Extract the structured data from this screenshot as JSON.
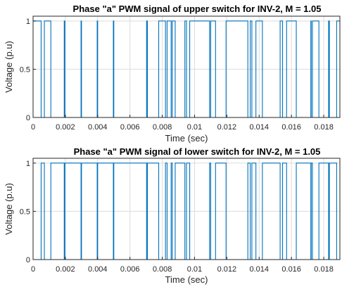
{
  "chart_data": [
    {
      "type": "line",
      "title": "Phase \"a\" PWM signal of upper switch for INV-2, M =  1.05",
      "xlabel": "Time (sec)",
      "ylabel": "Voltage (p.u)",
      "xlim": [
        0,
        0.019
      ],
      "ylim": [
        0,
        1.05
      ],
      "xticks": [
        0,
        0.002,
        0.004,
        0.006,
        0.008,
        0.01,
        0.012,
        0.014,
        0.016,
        0.018
      ],
      "xtick_labels": [
        "0",
        "0.002",
        "0.004",
        "0.006",
        "0.008",
        "0.01",
        "0.012",
        "0.014",
        "0.016",
        "0.018"
      ],
      "yticks": [
        0,
        0.5,
        1
      ],
      "ytick_labels": [
        "0",
        "0.5",
        "1"
      ],
      "grid": true,
      "line_color": "#0072bd",
      "series": [
        {
          "x": [
            0,
            0.0005,
            0.0005,
            0.0007,
            0.0007,
            0.0011,
            0.0011,
            0.00193,
            0.00193,
            0.00197,
            0.00197,
            0.00297,
            0.00297,
            0.003,
            0.003,
            0.00397,
            0.00397,
            0.004,
            0.004,
            0.00497,
            0.00497,
            0.005,
            0.005,
            0.00703,
            0.00703,
            0.00708,
            0.00708,
            0.00778,
            0.00778,
            0.0082,
            0.0082,
            0.0083,
            0.0083,
            0.00855,
            0.00855,
            0.00862,
            0.00862,
            0.0088,
            0.0088,
            0.0094,
            0.0094,
            0.0095,
            0.0095,
            0.0097,
            0.0097,
            0.01093,
            0.01093,
            0.011,
            0.011,
            0.0113,
            0.0113,
            0.01195,
            0.01195,
            0.0133,
            0.0133,
            0.01345,
            0.01345,
            0.01355,
            0.01355,
            0.0138,
            0.0138,
            0.0142,
            0.0142,
            0.0153,
            0.0153,
            0.01545,
            0.01545,
            0.0157,
            0.0157,
            0.0163,
            0.0163,
            0.0172,
            0.0172,
            0.01722,
            0.01722,
            0.0173,
            0.0173,
            0.0177,
            0.0177,
            0.0183,
            0.0183,
            0.01835,
            0.01835,
            0.0188,
            0.0188,
            0.019
          ],
          "y": [
            1,
            1,
            0,
            0,
            1,
            1,
            0,
            0,
            1,
            1,
            0,
            0,
            1,
            1,
            0,
            0,
            1,
            1,
            0,
            0,
            1,
            1,
            0,
            0,
            1,
            1,
            0,
            0,
            1,
            1,
            0,
            0,
            1,
            1,
            0,
            0,
            1,
            1,
            0,
            0,
            1,
            1,
            0,
            0,
            1,
            1,
            0,
            0,
            1,
            1,
            0,
            0,
            1,
            1,
            0,
            0,
            1,
            1,
            0,
            0,
            1,
            1,
            0,
            0,
            1,
            1,
            0,
            0,
            1,
            1,
            0,
            0,
            1,
            1,
            0,
            0,
            1,
            1,
            0,
            0,
            1,
            1,
            0,
            0,
            1,
            1
          ]
        }
      ]
    },
    {
      "type": "line",
      "title": "Phase \"a\" PWM signal of lower switch for INV-2, M =  1.05",
      "xlabel": "Time (sec)",
      "ylabel": "Voltage (p.u)",
      "xlim": [
        0,
        0.019
      ],
      "ylim": [
        0,
        1.05
      ],
      "xticks": [
        0,
        0.002,
        0.004,
        0.006,
        0.008,
        0.01,
        0.012,
        0.014,
        0.016,
        0.018
      ],
      "xtick_labels": [
        "0",
        "0.002",
        "0.004",
        "0.006",
        "0.008",
        "0.01",
        "0.012",
        "0.014",
        "0.016",
        "0.018"
      ],
      "yticks": [
        0,
        0.5,
        1
      ],
      "ytick_labels": [
        "0",
        "0.5",
        "1"
      ],
      "grid": true,
      "line_color": "#0072bd",
      "series": [
        {
          "x": [
            0,
            0.0005,
            0.0005,
            0.0007,
            0.0007,
            0.0011,
            0.0011,
            0.00193,
            0.00193,
            0.00197,
            0.00197,
            0.00297,
            0.00297,
            0.003,
            0.003,
            0.00397,
            0.00397,
            0.004,
            0.004,
            0.00497,
            0.00497,
            0.005,
            0.005,
            0.00703,
            0.00703,
            0.00708,
            0.00708,
            0.00778,
            0.00778,
            0.0082,
            0.0082,
            0.0083,
            0.0083,
            0.00855,
            0.00855,
            0.00862,
            0.00862,
            0.0088,
            0.0088,
            0.0094,
            0.0094,
            0.0095,
            0.0095,
            0.0097,
            0.0097,
            0.01093,
            0.01093,
            0.011,
            0.011,
            0.0113,
            0.0113,
            0.01195,
            0.01195,
            0.0133,
            0.0133,
            0.01345,
            0.01345,
            0.01355,
            0.01355,
            0.0138,
            0.0138,
            0.0142,
            0.0142,
            0.0153,
            0.0153,
            0.01545,
            0.01545,
            0.0157,
            0.0157,
            0.0163,
            0.0163,
            0.0172,
            0.0172,
            0.01722,
            0.01722,
            0.0173,
            0.0173,
            0.0177,
            0.0177,
            0.0183,
            0.0183,
            0.01835,
            0.01835,
            0.0188,
            0.0188,
            0.019
          ],
          "y": [
            0,
            0,
            1,
            1,
            0,
            0,
            1,
            1,
            0,
            0,
            1,
            1,
            0,
            0,
            1,
            1,
            0,
            0,
            1,
            1,
            0,
            0,
            1,
            1,
            0,
            0,
            1,
            1,
            0,
            0,
            1,
            1,
            0,
            0,
            1,
            1,
            0,
            0,
            1,
            1,
            0,
            0,
            1,
            1,
            0,
            0,
            1,
            1,
            0,
            0,
            1,
            1,
            0,
            0,
            1,
            1,
            0,
            0,
            1,
            1,
            0,
            0,
            1,
            1,
            0,
            0,
            1,
            1,
            0,
            0,
            1,
            1,
            0,
            0,
            1,
            1,
            0,
            0,
            1,
            1,
            0,
            0,
            1,
            1,
            0,
            0
          ]
        }
      ]
    }
  ]
}
